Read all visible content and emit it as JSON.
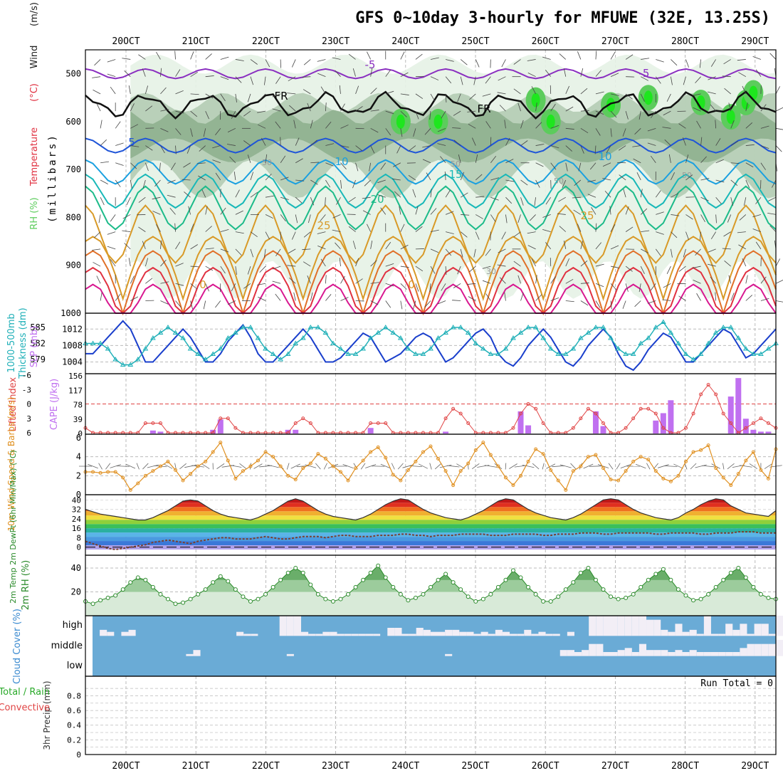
{
  "title": "GFS 0~10day 3-hourly for MFUWE (32E, 13.25S)",
  "x_tick_labels": [
    "20OCT",
    "21OCT",
    "22OCT",
    "23OCT",
    "24OCT",
    "25OCT",
    "26OCT",
    "27OCT",
    "28OCT",
    "29OCT"
  ],
  "colors": {
    "t_neg5": "#8a2fc0",
    "t_5": "#1f55d8",
    "t_10": "#1aa0e0",
    "t_15": "#18b8b8",
    "t_20": "#1dbb8a",
    "t_25": "#d89a28",
    "t_30": "#e07028",
    "t_35": "#e03040",
    "t_40": "#d81890",
    "rh_light": "#e6f2e6",
    "rh_mid": "#b4ccb4",
    "rh_dark": "#8fb08f",
    "rh_wet": "#5ccc5c",
    "rh_sat": "#1ee61e",
    "slp": "#1a3fcc",
    "thk": "#20b0b8",
    "li": "#e04444",
    "cape": "#c070f0",
    "wind": "#e09020",
    "rh2m": "#2a8a2a",
    "cloud_bg": "#6aabd6",
    "cloud_fill": "#f2eef6",
    "li_ref": "#e04444"
  },
  "chart_data": [
    {
      "type": "area",
      "panel": "profile",
      "ylabel": "(millibars)",
      "legend_labels": [
        "RH (%)",
        "Temperature",
        "(°C)",
        "Wind",
        "(m/s)"
      ],
      "yticks": [
        "500",
        "600",
        "700",
        "800",
        "900",
        "1000"
      ],
      "ylim": [
        450,
        1000
      ],
      "contour_labels": [
        "-5",
        "-5",
        "FR",
        "FR",
        "5",
        "10",
        "10",
        "15",
        "20",
        "25",
        "25",
        "0",
        "0"
      ],
      "rh_labels": [
        "50",
        "50",
        "50",
        "50",
        "30"
      ],
      "isotherms_mb": [
        {
          "t": "-5",
          "base": 500,
          "amp": 10
        },
        {
          "t": "FR",
          "base": 565,
          "amp": 20
        },
        {
          "t": "5",
          "base": 650,
          "amp": 15
        },
        {
          "t": "10",
          "base": 705,
          "amp": 25
        },
        {
          "t": "15",
          "base": 745,
          "amp": 35
        },
        {
          "t": "20",
          "base": 780,
          "amp": 45
        },
        {
          "t": "25",
          "base": 835,
          "amp": 60
        }
      ]
    },
    {
      "type": "line",
      "panel": "slp_thickness",
      "ylabel_left": "Thickness (dm)",
      "ylabel_left2": "1000-500mb",
      "ylabel_right": "SLP (mb)",
      "yticks_left": [
        "585",
        "582",
        "579"
      ],
      "yticks_right": [
        "1012",
        "1008",
        "1004"
      ],
      "series": [
        {
          "name": "SLP",
          "values": [
            1006,
            1006,
            1008,
            1010,
            1012,
            1014,
            1012,
            1008,
            1004,
            1004,
            1006,
            1008,
            1010,
            1012,
            1010,
            1007,
            1004,
            1004,
            1006,
            1009,
            1011,
            1013,
            1010,
            1006,
            1004,
            1004,
            1006,
            1008,
            1010,
            1012,
            1010,
            1007,
            1004,
            1004,
            1005,
            1007,
            1009,
            1011,
            1010,
            1007,
            1004,
            1005,
            1006,
            1008,
            1010,
            1011,
            1010,
            1007,
            1004,
            1005,
            1007,
            1009,
            1011,
            1012,
            1010,
            1006,
            1004,
            1003,
            1005,
            1008,
            1010,
            1012,
            1010,
            1007,
            1004,
            1003,
            1005,
            1008,
            1010,
            1012,
            1010,
            1006,
            1003,
            1002,
            1004,
            1007,
            1009,
            1011,
            1010,
            1007,
            1004,
            1004,
            1006,
            1008,
            1010,
            1012,
            1011,
            1008,
            1005,
            1006,
            1008,
            1010,
            1012
          ]
        },
        {
          "name": "Thickness",
          "values": [
            582,
            582,
            582,
            581,
            579,
            578,
            578,
            579,
            581,
            583,
            584,
            585,
            584,
            583,
            581,
            580,
            579,
            580,
            581,
            583,
            584,
            585,
            585,
            583,
            581,
            580,
            579,
            580,
            582,
            583,
            585,
            585,
            584,
            582,
            581,
            580,
            580,
            581,
            583,
            584,
            585,
            584,
            583,
            581,
            580,
            580,
            581,
            583,
            584,
            585,
            585,
            584,
            582,
            581,
            580,
            580,
            581,
            583,
            584,
            585,
            585,
            583,
            581,
            580,
            580,
            581,
            583,
            584,
            585,
            585,
            583,
            581,
            580,
            580,
            582,
            583,
            585,
            586,
            584,
            582,
            580,
            579,
            580,
            582,
            584,
            585,
            585,
            583,
            581,
            580,
            580,
            581,
            582
          ]
        }
      ]
    },
    {
      "type": "bar",
      "panel": "li_cape",
      "ylabel_left": "Lifted Index",
      "ylabel_right": "CAPE (J/kg)",
      "yticks_left": [
        "-6",
        "-3",
        "0",
        "3",
        "6"
      ],
      "yticks_right": [
        "156",
        "117",
        "78",
        "39",
        "0"
      ],
      "series": [
        {
          "name": "Lifted Index",
          "values": [
            5,
            6,
            6,
            6,
            6,
            6,
            6,
            6,
            4,
            4,
            4,
            6,
            6,
            6,
            6,
            6,
            6,
            6,
            3,
            3,
            5,
            6,
            6,
            6,
            6,
            6,
            6,
            6,
            4,
            3,
            4,
            6,
            6,
            6,
            6,
            6,
            6,
            6,
            4,
            4,
            4,
            6,
            6,
            6,
            6,
            6,
            6,
            6,
            3,
            1,
            2,
            4,
            6,
            6,
            6,
            6,
            6,
            5,
            2,
            0,
            1,
            4,
            6,
            6,
            6,
            5,
            3,
            1,
            2,
            4,
            6,
            6,
            5,
            3,
            1,
            1,
            2,
            5,
            6,
            6,
            5,
            2,
            -2,
            -4,
            -2,
            2,
            4,
            6,
            5,
            4,
            3,
            4,
            5
          ]
        },
        {
          "name": "CAPE",
          "values": [
            0,
            0,
            0,
            0,
            0,
            0,
            0,
            0,
            0,
            8,
            5,
            0,
            0,
            0,
            0,
            0,
            0,
            10,
            38,
            0,
            0,
            0,
            0,
            0,
            0,
            0,
            0,
            10,
            10,
            0,
            0,
            0,
            0,
            0,
            0,
            0,
            0,
            0,
            15,
            0,
            0,
            0,
            0,
            0,
            0,
            0,
            0,
            0,
            5,
            0,
            0,
            0,
            0,
            0,
            0,
            0,
            0,
            0,
            60,
            22,
            0,
            0,
            0,
            0,
            0,
            0,
            0,
            0,
            60,
            20,
            0,
            0,
            0,
            0,
            0,
            0,
            35,
            55,
            90,
            0,
            0,
            0,
            0,
            0,
            0,
            0,
            100,
            150,
            40,
            10,
            5,
            5,
            0
          ]
        }
      ]
    },
    {
      "type": "line",
      "panel": "wind10m",
      "ylabel": "10m Wind Speed & Barbs (m/s)",
      "yticks": [
        "6",
        "4",
        "2",
        "0"
      ],
      "values": [
        2.4,
        2.4,
        2.3,
        2.4,
        2.4,
        1.8,
        0.5,
        1.2,
        2.0,
        2.5,
        3.0,
        3.5,
        2.6,
        1.5,
        2.2,
        3.0,
        3.5,
        4.5,
        5.5,
        3.6,
        1.7,
        2.5,
        3.0,
        3.6,
        4.5,
        4.0,
        3.0,
        2.0,
        1.6,
        2.8,
        3.3,
        4.3,
        3.8,
        3.0,
        2.4,
        1.5,
        2.8,
        3.6,
        4.5,
        5.0,
        3.9,
        2.1,
        1.5,
        2.6,
        3.5,
        4.5,
        5.1,
        3.8,
        2.5,
        1.0,
        2.5,
        3.3,
        4.7,
        5.5,
        4.2,
        3.0,
        1.8,
        1.0,
        2.0,
        3.5,
        4.8,
        4.3,
        2.6,
        1.5,
        0.5,
        2.5,
        3.0,
        4.0,
        4.2,
        2.8,
        1.6,
        1.5,
        2.5,
        3.5,
        4.0,
        3.7,
        2.5,
        1.7,
        1.4,
        2.0,
        3.5,
        4.5,
        4.7,
        5.2,
        2.8,
        1.8,
        1.0,
        2.2,
        3.6,
        4.5,
        2.6,
        1.7,
        4.8
      ]
    },
    {
      "type": "area",
      "panel": "temp2m",
      "ylabel": "2m Temp 2m DewPt (6hr Min/Max) (°C)",
      "yticks": [
        "40",
        "32",
        "24",
        "16",
        "8",
        "0"
      ],
      "series": [
        {
          "name": "Temp",
          "values": [
            32,
            30,
            28,
            27,
            26,
            25,
            24,
            23,
            23,
            25,
            28,
            31,
            35,
            39,
            40,
            39,
            35,
            31,
            28,
            26,
            25,
            24,
            23,
            25,
            28,
            31,
            35,
            39,
            41,
            39,
            35,
            31,
            28,
            26,
            25,
            24,
            23,
            25,
            28,
            32,
            36,
            39,
            41,
            40,
            36,
            32,
            29,
            27,
            25,
            24,
            23,
            25,
            28,
            31,
            35,
            39,
            41,
            40,
            36,
            32,
            29,
            27,
            25,
            24,
            23,
            25,
            28,
            32,
            36,
            40,
            41,
            40,
            36,
            32,
            29,
            27,
            25,
            24,
            23,
            25,
            29,
            32,
            36,
            39,
            41,
            40,
            35,
            32,
            29,
            28,
            27,
            26,
            31
          ]
        },
        {
          "name": "DewPt",
          "values": [
            5,
            3,
            1,
            -1,
            -2,
            -1,
            0,
            1,
            2,
            4,
            5,
            6,
            5,
            4,
            3,
            5,
            6,
            7,
            8,
            8,
            7,
            7,
            7,
            8,
            9,
            8,
            7,
            7,
            8,
            9,
            9,
            9,
            8,
            9,
            10,
            10,
            9,
            9,
            9,
            10,
            10,
            10,
            11,
            11,
            10,
            10,
            9,
            10,
            10,
            10,
            11,
            11,
            11,
            11,
            10,
            10,
            10,
            11,
            11,
            11,
            11,
            10,
            10,
            11,
            11,
            11,
            12,
            12,
            12,
            11,
            11,
            12,
            12,
            12,
            12,
            12,
            11,
            11,
            12,
            12,
            12,
            12,
            11,
            11,
            12,
            12,
            12,
            13,
            13,
            13,
            12,
            12,
            12
          ]
        }
      ]
    },
    {
      "type": "area",
      "panel": "rh2m",
      "ylabel": "2m RH (%)",
      "yticks": [
        "40",
        "20"
      ],
      "values": [
        12,
        10,
        13,
        15,
        17,
        22,
        28,
        32,
        30,
        24,
        18,
        14,
        10,
        11,
        14,
        18,
        22,
        28,
        33,
        29,
        22,
        16,
        12,
        14,
        18,
        24,
        30,
        36,
        40,
        36,
        26,
        18,
        14,
        12,
        14,
        18,
        24,
        30,
        36,
        42,
        32,
        24,
        18,
        13,
        15,
        18,
        24,
        30,
        35,
        28,
        22,
        16,
        12,
        14,
        18,
        24,
        30,
        38,
        32,
        24,
        18,
        12,
        12,
        16,
        22,
        28,
        36,
        40,
        30,
        22,
        16,
        14,
        15,
        18,
        24,
        30,
        35,
        39,
        30,
        22,
        17,
        13,
        14,
        18,
        24,
        30,
        36,
        40,
        32,
        24,
        18,
        15,
        14,
        16,
        22,
        30,
        38,
        40,
        28,
        26
      ]
    },
    {
      "type": "bar",
      "panel": "cloud",
      "ylabel": "Cloud Cover (%)",
      "yticks": [
        "high",
        "middle",
        "low"
      ],
      "series": [
        {
          "name": "high",
          "values": [
            0,
            30,
            20,
            0,
            20,
            30,
            0,
            0,
            0,
            0,
            0,
            0,
            0,
            0,
            0,
            0,
            0,
            0,
            0,
            0,
            20,
            10,
            10,
            0,
            0,
            0,
            100,
            100,
            100,
            20,
            10,
            10,
            20,
            20,
            10,
            10,
            10,
            10,
            10,
            10,
            0,
            40,
            40,
            10,
            10,
            40,
            30,
            20,
            20,
            30,
            30,
            20,
            20,
            10,
            20,
            10,
            30,
            20,
            10,
            10,
            30,
            10,
            20,
            10,
            10,
            0,
            20,
            0,
            0,
            100,
            100,
            100,
            100,
            100,
            100,
            100,
            100,
            80,
            80,
            30,
            20,
            60,
            20,
            30,
            10,
            100,
            10,
            10,
            60,
            30,
            60,
            10,
            60,
            60,
            10,
            100,
            20
          ]
        },
        {
          "name": "middle",
          "values": [
            0,
            0,
            0,
            0,
            0,
            0,
            0,
            0,
            0,
            0,
            0,
            0,
            0,
            10,
            30,
            0,
            0,
            0,
            0,
            0,
            0,
            0,
            0,
            0,
            0,
            0,
            0,
            10,
            0,
            0,
            0,
            0,
            0,
            0,
            0,
            0,
            0,
            0,
            0,
            0,
            0,
            0,
            0,
            0,
            0,
            0,
            0,
            0,
            0,
            10,
            0,
            0,
            0,
            0,
            0,
            0,
            0,
            0,
            0,
            0,
            0,
            0,
            0,
            0,
            0,
            30,
            30,
            20,
            30,
            60,
            60,
            20,
            20,
            30,
            40,
            20,
            60,
            30,
            30,
            30,
            20,
            30,
            20,
            30,
            20,
            20,
            20,
            20,
            20,
            20,
            40,
            60,
            60,
            60,
            60,
            80
          ]
        },
        {
          "name": "low",
          "values": [
            0
          ]
        }
      ]
    },
    {
      "type": "bar",
      "panel": "precip",
      "ylabel": "3hr Precip (mm)",
      "legend_labels": [
        "Total / Rain",
        "Convective"
      ],
      "yticks": [
        "0.8",
        "0.6",
        "0.4",
        "0.2",
        "0"
      ],
      "run_total_label": "Run Total = 0",
      "values": []
    }
  ]
}
